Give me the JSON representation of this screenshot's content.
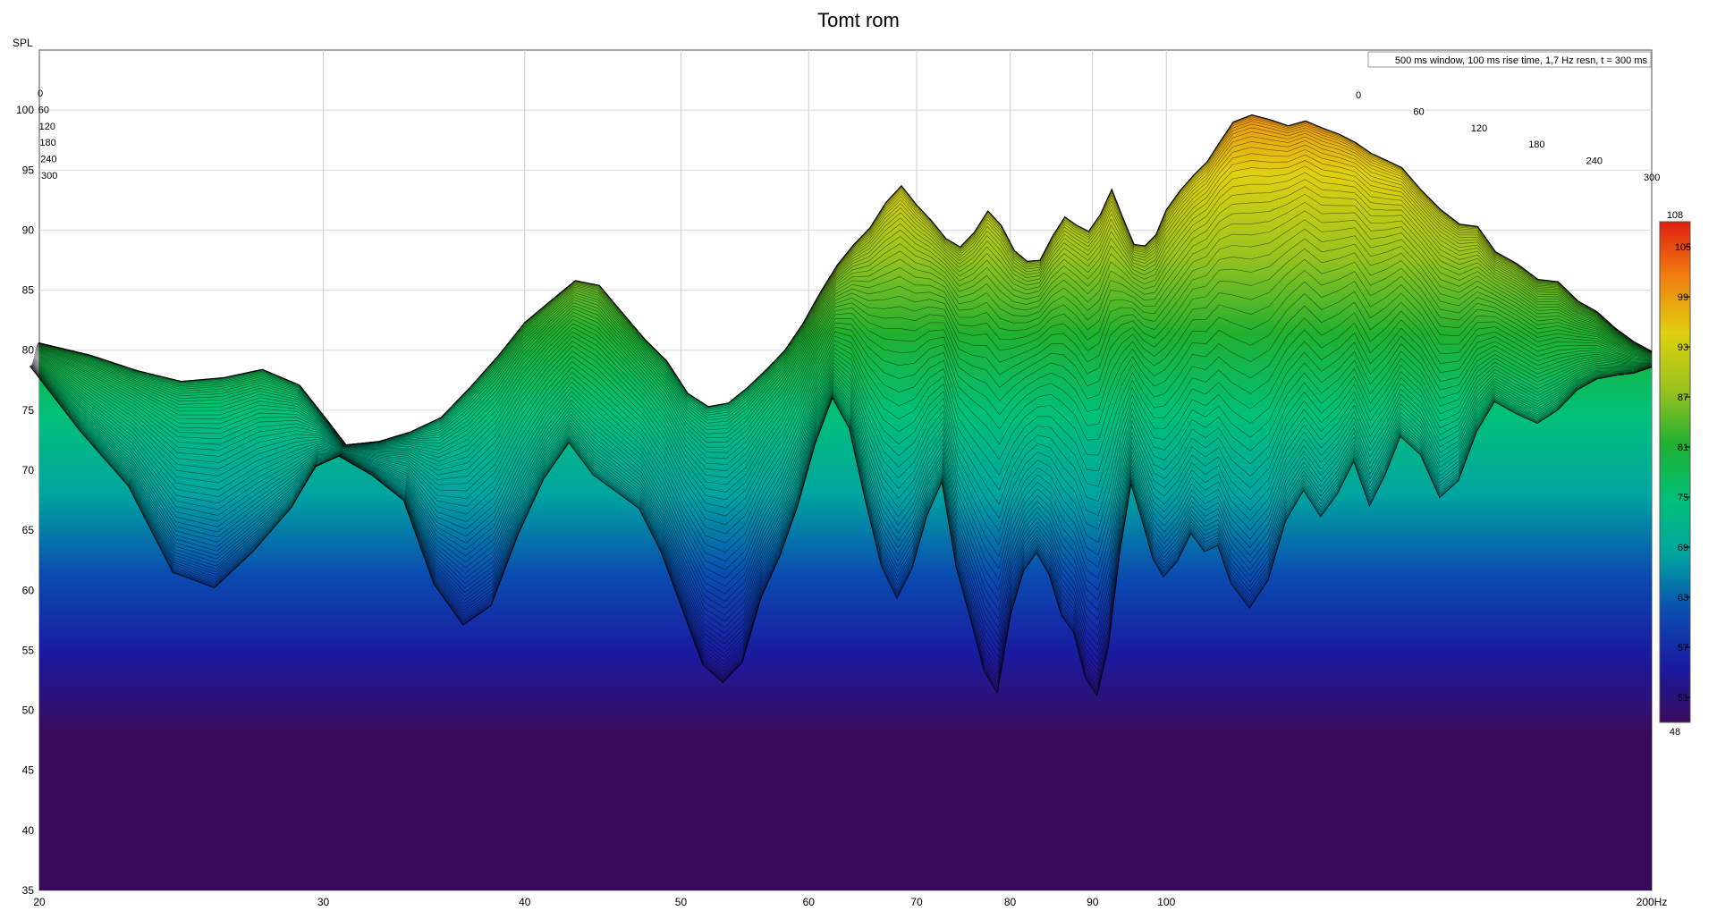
{
  "chart_data": {
    "type": "area",
    "title": "Tomt rom",
    "subtitle": "500 ms window, 100 ms rise time,  1,7 Hz resn, t = 300 ms",
    "ylabel": "SPL",
    "xunit": "Hz",
    "x_scale": "log",
    "xlim": [
      20,
      200
    ],
    "ylim": [
      35,
      105
    ],
    "x_ticks": [
      20,
      30,
      40,
      50,
      60,
      70,
      80,
      90,
      100,
      200
    ],
    "x_tick_labels": [
      "20",
      "30",
      "40",
      "50",
      "60",
      "70",
      "80",
      "90",
      "100",
      "200Hz"
    ],
    "y_ticks": [
      35,
      40,
      45,
      50,
      55,
      60,
      65,
      70,
      75,
      80,
      85,
      90,
      95,
      100
    ],
    "time_axis_labels": [
      "0",
      "60",
      "120",
      "180",
      "240",
      "300"
    ],
    "grid": true,
    "colorbar": {
      "min": 48,
      "max": 108,
      "tick_values": [
        51,
        57,
        63,
        69,
        75,
        81,
        87,
        93,
        99,
        105
      ],
      "min_label": "48",
      "max_label": "108",
      "colors": [
        "#3a0a5a",
        "#1a1aa0",
        "#0a4cb0",
        "#00a4a0",
        "#00c07a",
        "#20b030",
        "#9cc31e",
        "#e0d010",
        "#f08010",
        "#e02010"
      ]
    },
    "waterfall": {
      "time_ms": [
        0,
        300
      ],
      "slice_count": 60,
      "front_curve_t0": {
        "x": [
          20,
          21.5,
          23,
          24.5,
          26,
          27.5,
          29,
          30,
          31,
          32.5,
          34,
          35.5,
          37,
          38.5,
          40,
          41.5,
          43,
          44.5,
          46,
          47.5,
          49,
          50.5,
          52,
          53.5,
          55,
          56.5,
          58,
          59.5,
          61,
          62.5,
          64,
          65.5,
          67,
          68.5,
          70,
          71.5,
          73,
          74.5,
          76,
          77.5,
          79,
          80.5,
          82,
          83.5,
          85,
          86.5,
          88,
          89.5,
          91,
          92.5,
          94,
          95.5,
          97,
          98.5,
          100,
          102,
          104,
          106,
          108,
          110,
          113,
          116,
          119,
          122,
          125,
          128,
          131,
          134,
          137,
          140,
          144,
          148,
          152,
          156,
          160,
          165,
          170,
          175,
          180,
          185,
          190,
          195,
          200
        ],
        "y": [
          80.6,
          79.6,
          78.3,
          77.4,
          77.7,
          78.4,
          77.1,
          74.6,
          72.1,
          72.4,
          73.2,
          74.4,
          76.9,
          79.5,
          82.3,
          84.1,
          85.8,
          85.4,
          83.1,
          80.9,
          79.1,
          76.4,
          75.3,
          75.6,
          76.9,
          78.4,
          80.0,
          82.2,
          84.8,
          87.1,
          88.8,
          90.2,
          92.3,
          93.7,
          92.1,
          90.8,
          89.3,
          88.6,
          89.8,
          91.6,
          90.4,
          88.3,
          87.4,
          87.5,
          89.5,
          91.1,
          90.4,
          89.9,
          91.3,
          93.4,
          91.0,
          88.8,
          88.7,
          89.6,
          91.7,
          93.3,
          94.6,
          95.7,
          97.4,
          99.0,
          99.6,
          99.2,
          98.7,
          99.1,
          98.5,
          98.0,
          97.3,
          96.4,
          95.8,
          95.2,
          93.3,
          91.7,
          90.5,
          90.3,
          88.2,
          87.2,
          85.9,
          85.7,
          84.1,
          83.2,
          81.8,
          80.7,
          79.9
        ]
      },
      "decay_profile_t300": {
        "x": [
          20,
          21.5,
          23,
          24.5,
          26,
          27.5,
          29,
          30,
          31,
          32.5,
          34,
          35.5,
          37,
          38.5,
          40,
          41.5,
          43,
          44.5,
          46,
          47.5,
          49,
          50.5,
          52,
          53.5,
          55,
          56.5,
          58,
          59.5,
          61,
          62.5,
          64,
          65.5,
          67,
          68.5,
          70,
          71.5,
          73,
          74.5,
          76,
          77.5,
          79,
          80.5,
          82,
          83.5,
          85,
          86.5,
          88,
          89.5,
          91,
          92.5,
          94,
          95.5,
          97,
          98.5,
          100,
          102,
          104,
          106,
          108,
          110,
          113,
          116,
          119,
          122,
          125,
          128,
          131,
          134,
          137,
          140,
          144,
          148,
          152,
          156,
          160,
          165,
          170,
          175,
          180,
          185,
          190,
          195,
          200
        ],
        "y": [
          78.1,
          72.6,
          68.1,
          60.9,
          59.6,
          62.7,
          66.3,
          69.7,
          70.6,
          69.0,
          66.9,
          59.9,
          56.5,
          58.1,
          64.0,
          68.7,
          71.7,
          69.0,
          67.6,
          66.2,
          62.6,
          57.8,
          53.2,
          51.7,
          53.4,
          58.8,
          62.2,
          66.4,
          71.6,
          75.4,
          72.9,
          66.8,
          61.4,
          58.7,
          61.2,
          65.6,
          68.4,
          61.3,
          57.1,
          52.7,
          50.8,
          57.3,
          61.0,
          62.5,
          60.7,
          57.3,
          55.9,
          52.1,
          50.6,
          54.7,
          62.5,
          68.2,
          65.2,
          62.0,
          60.5,
          61.8,
          64.1,
          62.6,
          63.1,
          60.0,
          57.9,
          60.2,
          65.2,
          67.7,
          65.5,
          67.4,
          70.1,
          66.4,
          69.0,
          72.2,
          70.7,
          67.1,
          68.5,
          72.6,
          75.1,
          74.1,
          73.3,
          74.4,
          76.1,
          77.0,
          77.3,
          77.5,
          78.0
        ]
      },
      "mid_decay_weights": [
        0.3,
        0.55,
        0.8
      ]
    }
  }
}
